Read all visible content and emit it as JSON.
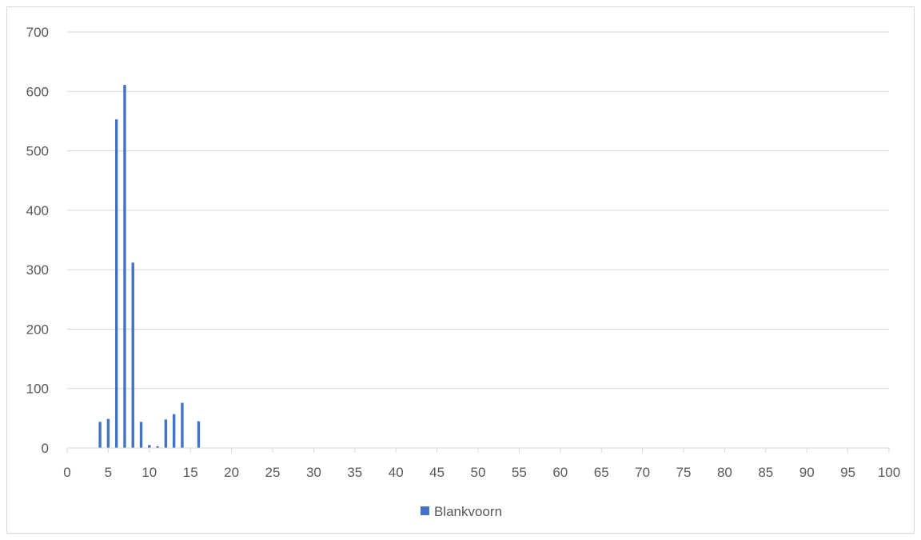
{
  "chart_data": {
    "type": "bar",
    "title": "",
    "xlabel": "",
    "ylabel": "",
    "xlim": [
      0,
      100
    ],
    "ylim": [
      0,
      700
    ],
    "x_ticks": [
      "0",
      "5",
      "10",
      "15",
      "20",
      "25",
      "30",
      "35",
      "40",
      "45",
      "50",
      "55",
      "60",
      "65",
      "70",
      "75",
      "80",
      "85",
      "90",
      "95",
      "100"
    ],
    "y_ticks": [
      "0",
      "100",
      "200",
      "300",
      "400",
      "500",
      "600",
      "700"
    ],
    "grid": true,
    "legend_position": "bottom",
    "series": [
      {
        "name": "Blankvoorn",
        "color": "#4472C4",
        "x": [
          4,
          5,
          6,
          7,
          8,
          9,
          10,
          11,
          12,
          13,
          14,
          16
        ],
        "values": [
          44,
          49,
          553,
          611,
          312,
          44,
          5,
          3,
          48,
          57,
          76,
          45
        ]
      }
    ]
  }
}
